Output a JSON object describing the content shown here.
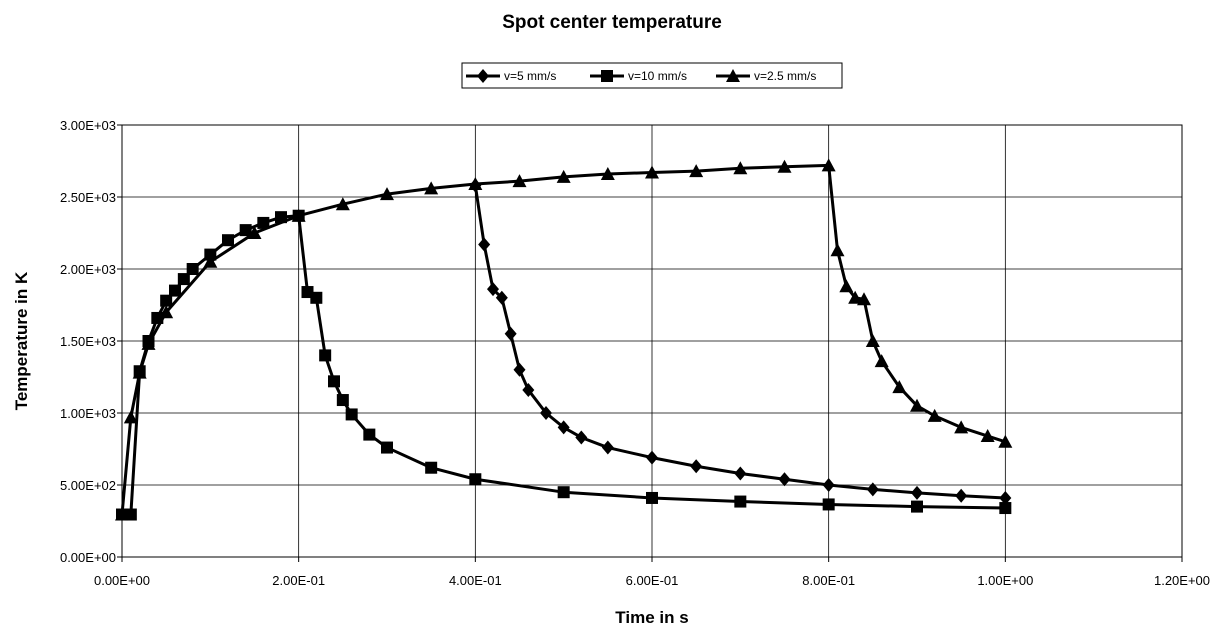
{
  "chart_data": {
    "type": "line",
    "title": "Spot center temperature",
    "xlabel": "Time in s",
    "ylabel": "Temperature in K",
    "xlim": [
      0,
      1.2
    ],
    "ylim": [
      0,
      3000
    ],
    "xticks": [
      "0.00E+00",
      "2.00E-01",
      "4.00E-01",
      "6.00E-01",
      "8.00E-01",
      "1.00E+00",
      "1.20E+00"
    ],
    "yticks": [
      "0.00E+00",
      "5.00E+02",
      "1.00E+03",
      "1.50E+03",
      "2.00E+03",
      "2.50E+03",
      "3.00E+03"
    ],
    "grid": true,
    "legend_position": "top",
    "line_color": "#000000",
    "series": [
      {
        "name": "v=5 mm/s",
        "marker": "diamond",
        "x": [
          0.4,
          0.41,
          0.42,
          0.43,
          0.44,
          0.45,
          0.46,
          0.48,
          0.5,
          0.52,
          0.55,
          0.6,
          0.65,
          0.7,
          0.75,
          0.8,
          0.85,
          0.9,
          0.95,
          1.0
        ],
        "y": [
          2580,
          2170,
          1860,
          1800,
          1550,
          1300,
          1160,
          1000,
          900,
          830,
          760,
          690,
          630,
          580,
          540,
          500,
          470,
          445,
          425,
          410
        ]
      },
      {
        "name": "v=10 mm/s",
        "marker": "square",
        "x": [
          0,
          0.01,
          0.02,
          0.03,
          0.04,
          0.05,
          0.06,
          0.07,
          0.08,
          0.1,
          0.12,
          0.14,
          0.16,
          0.18,
          0.2,
          0.21,
          0.22,
          0.23,
          0.24,
          0.25,
          0.26,
          0.28,
          0.3,
          0.35,
          0.4,
          0.5,
          0.6,
          0.7,
          0.8,
          0.9,
          1.0
        ],
        "y": [
          295,
          295,
          1290,
          1500,
          1660,
          1780,
          1850,
          1930,
          2000,
          2100,
          2200,
          2270,
          2320,
          2360,
          2370,
          1840,
          1800,
          1400,
          1220,
          1090,
          990,
          850,
          760,
          620,
          540,
          450,
          410,
          385,
          365,
          350,
          340
        ]
      },
      {
        "name": "v=2.5 mm/s",
        "marker": "triangle",
        "x": [
          0,
          0.01,
          0.02,
          0.03,
          0.05,
          0.1,
          0.15,
          0.2,
          0.25,
          0.3,
          0.35,
          0.4,
          0.45,
          0.5,
          0.55,
          0.6,
          0.65,
          0.7,
          0.75,
          0.8,
          0.81,
          0.82,
          0.83,
          0.84,
          0.85,
          0.86,
          0.88,
          0.9,
          0.92,
          0.95,
          0.98,
          1.0
        ],
        "y": [
          295,
          970,
          1280,
          1480,
          1700,
          2050,
          2250,
          2370,
          2450,
          2520,
          2560,
          2590,
          2610,
          2640,
          2660,
          2670,
          2680,
          2700,
          2710,
          2720,
          2130,
          1880,
          1800,
          1790,
          1500,
          1360,
          1180,
          1050,
          980,
          900,
          840,
          800
        ]
      }
    ]
  }
}
